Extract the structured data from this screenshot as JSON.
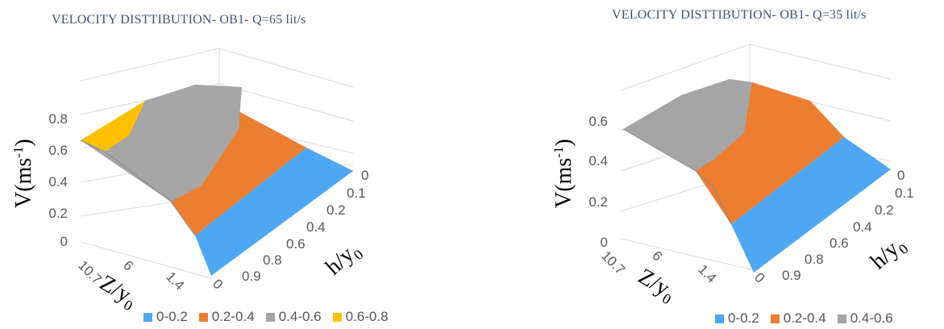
{
  "chart_data": [
    {
      "type": "surface",
      "title": "VELOCITY DISTTIBUTION- OB1- Q=65 lit/s",
      "zlabel": "V(ms-1)",
      "xlabel": "Z/y0",
      "ylabel": "h/y0",
      "z_ticks": [
        "0",
        "0.2",
        "0.4",
        "0.6",
        "0.8"
      ],
      "x_ticks": [
        "10.7",
        "6",
        "1.4",
        "0"
      ],
      "y_ticks": [
        "0",
        "0.1",
        "0.2",
        "0.4",
        "0.6",
        "0.8",
        "0.9"
      ],
      "legend": [
        {
          "label": "0-0.2",
          "color": "#4ea7f2"
        },
        {
          "label": "0.2-0.4",
          "color": "#ed7d31"
        },
        {
          "label": "0.4-0.6",
          "color": "#a5a5a5"
        },
        {
          "label": "0.6-0.8",
          "color": "#ffc000"
        }
      ],
      "legend_position": "bottom"
    },
    {
      "type": "surface",
      "title": "VELOCITY DISTTIBUTION- OB1- Q=35 lit/s",
      "zlabel": "V(ms-1)",
      "xlabel": "Z/y0",
      "ylabel": "h/y0",
      "z_ticks": [
        "0",
        "0.2",
        "0.4",
        "0.6"
      ],
      "x_ticks": [
        "10.7",
        "6",
        "1.4",
        "0"
      ],
      "y_ticks": [
        "0",
        "0.1",
        "0.2",
        "0.4",
        "0.6",
        "0.8",
        "0.9"
      ],
      "legend": [
        {
          "label": "0-0.2",
          "color": "#4ea7f2"
        },
        {
          "label": "0.2-0.4",
          "color": "#ed7d31"
        },
        {
          "label": "0.4-0.6",
          "color": "#a5a5a5"
        }
      ],
      "legend_position": "bottom"
    }
  ]
}
